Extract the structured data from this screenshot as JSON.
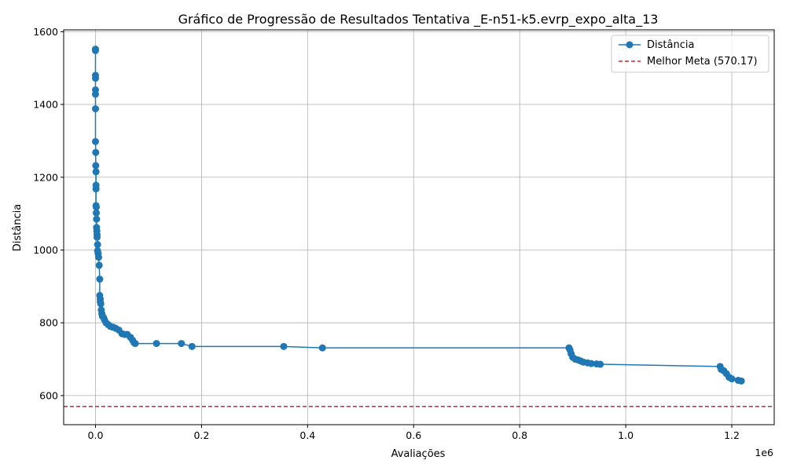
{
  "chart_data": {
    "type": "line",
    "title": "Gráfico de Progressão de Resultados Tentativa _E-n51-k5.evrp_expo_alta_13",
    "xlabel": "Avaliações",
    "ylabel": "Distância",
    "x_offset_label": "1e6",
    "xlim": [
      -0.06,
      1.28
    ],
    "ylim": [
      520,
      1605
    ],
    "x_ticks": [
      0.0,
      0.2,
      0.4,
      0.6,
      0.8,
      1.0,
      1.2
    ],
    "x_tick_labels": [
      "0.0",
      "0.2",
      "0.4",
      "0.6",
      "0.8",
      "1.0",
      "1.2"
    ],
    "y_ticks": [
      600,
      800,
      1000,
      1200,
      1400,
      1600
    ],
    "y_tick_labels": [
      "600",
      "800",
      "1000",
      "1200",
      "1400",
      "1600"
    ],
    "grid": true,
    "legend_position": "top-right",
    "series": [
      {
        "name": "Distância",
        "color": "#1f77b4",
        "style": "line-marker",
        "x": [
          0,
          0,
          0,
          0,
          0,
          0,
          0,
          0,
          0.0005,
          0.0005,
          0.001,
          0.001,
          0.001,
          0.001,
          0.0015,
          0.0015,
          0.002,
          0.002,
          0.0025,
          0.003,
          0.003,
          0.004,
          0.004,
          0.005,
          0.006,
          0.007,
          0.008,
          0.008,
          0.009,
          0.009,
          0.01,
          0.011,
          0.012,
          0.013,
          0.015,
          0.017,
          0.02,
          0.024,
          0.028,
          0.033,
          0.038,
          0.044,
          0.05,
          0.055,
          0.06,
          0.066,
          0.07,
          0.073,
          0.075,
          0.115,
          0.162,
          0.182,
          0.355,
          0.428,
          0.893,
          0.895,
          0.897,
          0.9,
          0.905,
          0.91,
          0.915,
          0.92,
          0.928,
          0.935,
          0.945,
          0.952,
          1.178,
          1.18,
          1.185,
          1.19,
          1.195,
          1.2,
          1.212,
          1.218
        ],
        "values": [
          1552,
          1548,
          1480,
          1472,
          1440,
          1428,
          1388,
          1298,
          1268,
          1232,
          1215,
          1178,
          1168,
          1122,
          1118,
          1102,
          1085,
          1062,
          1052,
          1042,
          1035,
          1015,
          998,
          990,
          980,
          958,
          920,
          875,
          865,
          858,
          852,
          835,
          825,
          818,
          815,
          808,
          800,
          795,
          790,
          788,
          785,
          780,
          770,
          768,
          768,
          760,
          752,
          745,
          743,
          743,
          743,
          735,
          735,
          731,
          731,
          725,
          715,
          705,
          700,
          698,
          695,
          692,
          690,
          688,
          687,
          686,
          680,
          672,
          668,
          660,
          650,
          646,
          642,
          640
        ]
      }
    ],
    "reference_lines": [
      {
        "name": "Melhor Meta (570.17)",
        "y": 570.17,
        "color": "#d62728",
        "style": "dashed"
      }
    ]
  }
}
